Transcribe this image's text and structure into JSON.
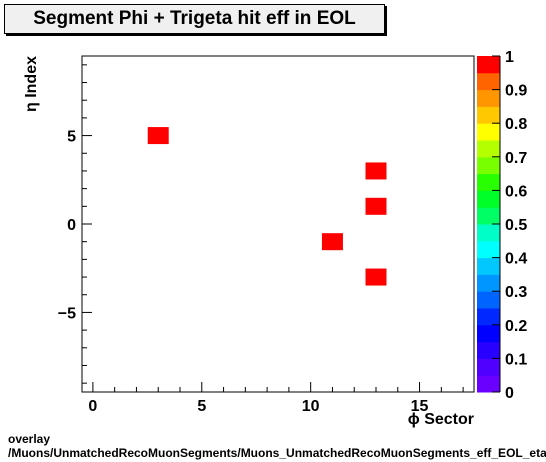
{
  "chart_data": {
    "type": "heatmap",
    "title": "Segment Phi + Trigeta hit eff in EOL",
    "xlabel": "ϕ Sector",
    "ylabel": "η Index",
    "xlim": [
      -0.5,
      17.5
    ],
    "ylim": [
      -9.5,
      9.5
    ],
    "x_ticks": [
      0,
      5,
      10,
      15
    ],
    "y_ticks": [
      -5,
      0,
      5
    ],
    "x_tick_labels": [
      "0",
      "5",
      "10",
      "15"
    ],
    "y_tick_labels": [
      "−5",
      "0",
      "5"
    ],
    "z_range": [
      0,
      1
    ],
    "colorbar_ticks": [
      0,
      0.1,
      0.2,
      0.3,
      0.4,
      0.5,
      0.6,
      0.7,
      0.8,
      0.9,
      1
    ],
    "colorbar_tick_labels": [
      "0",
      "0.1",
      "0.2",
      "0.3",
      "0.4",
      "0.5",
      "0.6",
      "0.7",
      "0.8",
      "0.9",
      "1"
    ],
    "cells": [
      {
        "x": 3,
        "y": 5,
        "value": 1
      },
      {
        "x": 13,
        "y": 3,
        "value": 1
      },
      {
        "x": 13,
        "y": 1,
        "value": 1
      },
      {
        "x": 11,
        "y": -1,
        "value": 1
      },
      {
        "x": 13,
        "y": -3,
        "value": 1
      }
    ],
    "cell_color": "#ff0000"
  },
  "footer": {
    "line1": "overlay",
    "line2": "/Muons/UnmatchedRecoMuonSegments/Muons_UnmatchedRecoMuonSegments_eff_EOL_etaphi"
  }
}
